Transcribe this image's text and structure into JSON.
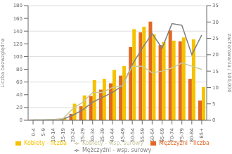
{
  "chart_data": {
    "type": "bar",
    "categories": [
      "0-4",
      "5-9",
      "10-14",
      "15-19",
      "20-24",
      "25-29",
      "30-34",
      "35-39",
      "40-44",
      "45-49",
      "50-54",
      "55-59",
      "60-64",
      "65-69",
      "70-74",
      "75-79",
      "80-84",
      "85+"
    ],
    "series": [
      {
        "name": "Mężczyźni - liczba",
        "type": "bar",
        "color": "#e06820",
        "values": [
          1,
          1,
          1,
          2,
          10,
          22,
          38,
          48,
          58,
          70,
          115,
          138,
          155,
          118,
          141,
          124,
          65,
          31
        ]
      },
      {
        "name": "Kobiety - liczba",
        "type": "bar",
        "color": "#f5c200",
        "values": [
          1,
          1,
          2,
          4,
          26,
          39,
          63,
          65,
          79,
          85,
          143,
          147,
          135,
          123,
          125,
          130,
          127,
          52
        ]
      },
      {
        "name": "Mężczyźni - wsp. surowy",
        "type": "line",
        "axis": "y2",
        "color": "#808080",
        "values": [
          0.1,
          0.1,
          0.2,
          0.4,
          1.5,
          3.2,
          5.5,
          7.0,
          8.5,
          10.5,
          17.0,
          22.0,
          26.5,
          22.0,
          29.5,
          29.0,
          20.0,
          26.0
        ]
      },
      {
        "name": "Kobiety - wsp. surowy",
        "type": "line",
        "axis": "y2",
        "color": "#c8c8a0",
        "values": [
          0.1,
          0.1,
          0.2,
          0.5,
          3.5,
          5.5,
          8.5,
          8.5,
          10.0,
          10.5,
          16.5,
          16.5,
          14.5,
          15.0,
          16.0,
          17.5,
          16.5,
          15.5
        ]
      }
    ],
    "ylabel": "Liczba bezwzględna",
    "y2label": "zachorowania / 100,000",
    "ylim": [
      0,
      180
    ],
    "yticks": [
      0,
      20,
      40,
      60,
      80,
      100,
      120,
      140,
      160,
      180
    ],
    "y2lim": [
      0,
      35
    ],
    "y2ticks": [
      0,
      5,
      10,
      15,
      20,
      25,
      30,
      35
    ],
    "grid": true,
    "legend": "bottom"
  }
}
